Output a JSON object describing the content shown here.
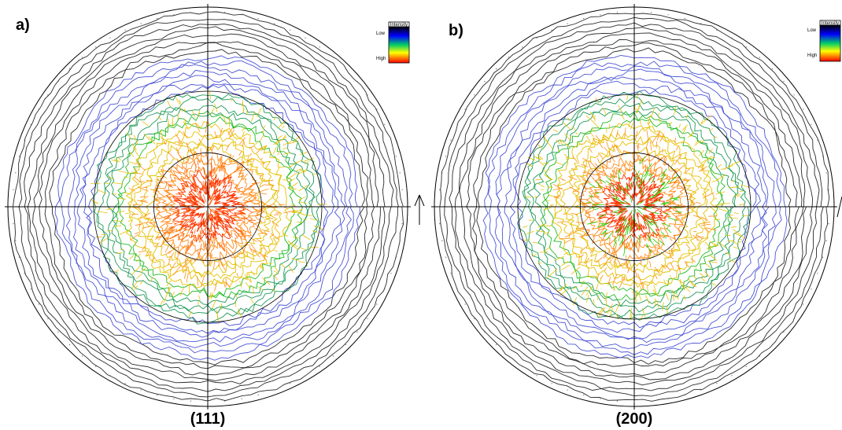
{
  "figure": {
    "panels": [
      {
        "letter": "a)",
        "caption": "(111)",
        "center_intensity": "high",
        "center_color": "#ff5a00",
        "legend": {
          "title": "Intensity",
          "low_label": "Low",
          "high_label": "High"
        }
      },
      {
        "letter": "b)",
        "caption": "(200)",
        "center_intensity": "medium-high",
        "center_color": "#22cc00",
        "legend": {
          "title": "Intensity",
          "low_label": "Low",
          "high_label": "High"
        }
      }
    ],
    "intensity_scale": [
      "#000000",
      "#0000ff",
      "#00cc66",
      "#ffff00",
      "#ff0000"
    ],
    "contour_palette": {
      "outer_black": "#2a2a2a",
      "blue": "#4b55d6",
      "teal_green": "#1f9a5a",
      "green": "#22bb22",
      "yellow": "#e6c000",
      "orange": "#ff8c1a",
      "red": "#ff3300"
    }
  }
}
